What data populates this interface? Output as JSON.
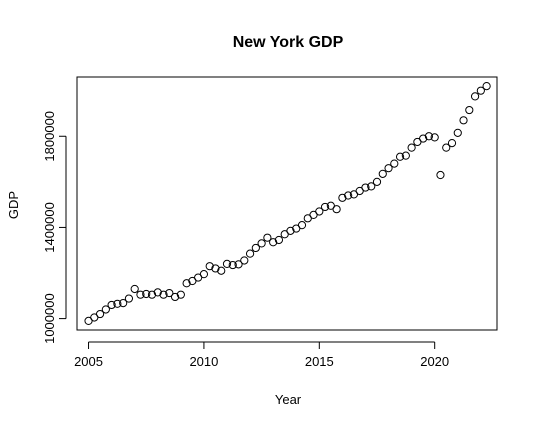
{
  "chart_data": {
    "type": "scatter",
    "title": "New York GDP",
    "xlabel": "Year",
    "ylabel": "GDP",
    "xlim": [
      2004.5,
      2022.7
    ],
    "ylim": [
      950000,
      2060000
    ],
    "x_ticks": [
      2005,
      2010,
      2015,
      2020
    ],
    "x_tick_labels": [
      "2005",
      "2010",
      "2015",
      "2020"
    ],
    "y_ticks": [
      1000000,
      1400000,
      1800000
    ],
    "y_tick_labels": [
      "1000000",
      "1400000",
      "1800000"
    ],
    "grid": false,
    "marker": "open-circle",
    "x": [
      2005.0,
      2005.25,
      2005.5,
      2005.75,
      2006.0,
      2006.25,
      2006.5,
      2006.75,
      2007.0,
      2007.25,
      2007.5,
      2007.75,
      2008.0,
      2008.25,
      2008.5,
      2008.75,
      2009.0,
      2009.25,
      2009.5,
      2009.75,
      2010.0,
      2010.25,
      2010.5,
      2010.75,
      2011.0,
      2011.25,
      2011.5,
      2011.75,
      2012.0,
      2012.25,
      2012.5,
      2012.75,
      2013.0,
      2013.25,
      2013.5,
      2013.75,
      2014.0,
      2014.25,
      2014.5,
      2014.75,
      2015.0,
      2015.25,
      2015.5,
      2015.75,
      2016.0,
      2016.25,
      2016.5,
      2016.75,
      2017.0,
      2017.25,
      2017.5,
      2017.75,
      2018.0,
      2018.25,
      2018.5,
      2018.75,
      2019.0,
      2019.25,
      2019.5,
      2019.75,
      2020.0,
      2020.25,
      2020.5,
      2020.75,
      2021.0,
      2021.25,
      2021.5,
      2021.75,
      2022.0,
      2022.25
    ],
    "y": [
      990000,
      1005000,
      1020000,
      1040000,
      1060000,
      1065000,
      1068000,
      1088000,
      1130000,
      1105000,
      1108000,
      1105000,
      1115000,
      1105000,
      1112000,
      1095000,
      1105000,
      1155000,
      1165000,
      1180000,
      1195000,
      1230000,
      1220000,
      1210000,
      1240000,
      1235000,
      1238000,
      1255000,
      1285000,
      1310000,
      1330000,
      1355000,
      1335000,
      1345000,
      1370000,
      1385000,
      1395000,
      1410000,
      1440000,
      1455000,
      1470000,
      1490000,
      1495000,
      1480000,
      1530000,
      1540000,
      1545000,
      1560000,
      1575000,
      1580000,
      1600000,
      1635000,
      1660000,
      1680000,
      1710000,
      1715000,
      1750000,
      1775000,
      1790000,
      1800000,
      1795000,
      1630000,
      1750000,
      1770000,
      1815000,
      1870000,
      1915000,
      1975000,
      2000000,
      2020000
    ]
  }
}
